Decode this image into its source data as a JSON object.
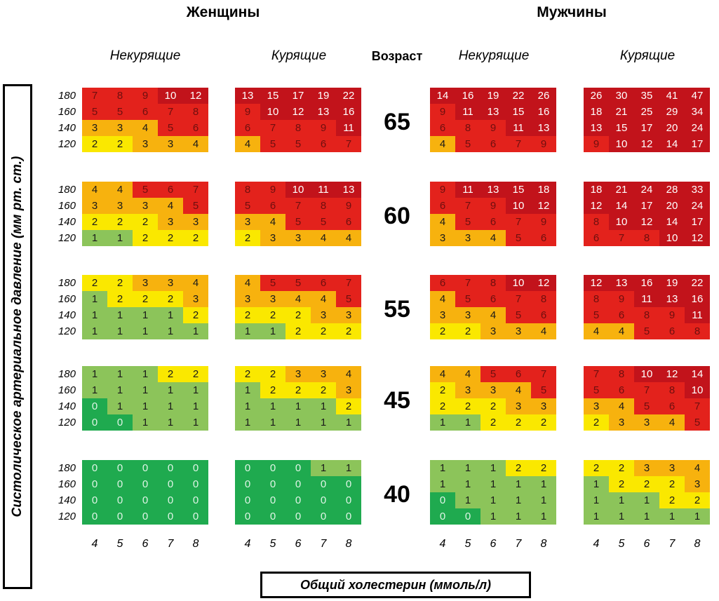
{
  "headers": {
    "women": "Женщины",
    "men": "Мужчины",
    "nonsmokers": "Некурящие",
    "smokers": "Курящие",
    "age": "Возраст"
  },
  "y_axis_label": "Систолическое артериальное давление (мм рт. ст.)",
  "x_axis_label": "Общий холестерин (ммоль/л)",
  "colors": {
    "dark_green": "#1faa4f",
    "light_green": "#8cc45a",
    "yellow": "#fae800",
    "orange": "#f7b20e",
    "red": "#e3221c",
    "dark_red": "#c2131b"
  },
  "chart_data": {
    "type": "heatmap",
    "title": "",
    "xlabel": "Общий холестерин (ммоль/л)",
    "ylabel": "Систолическое артериальное давление (мм рт. ст.)",
    "cholesterol": [
      "4",
      "5",
      "6",
      "7",
      "8"
    ],
    "blood_pressure": [
      "180",
      "160",
      "140",
      "120"
    ],
    "ages": [
      "65",
      "60",
      "55",
      "45",
      "40"
    ],
    "groups": [
      {
        "gender": "Женщины",
        "smoking": "Некурящие",
        "values": {
          "65": [
            [
              7,
              8,
              9,
              10,
              12
            ],
            [
              5,
              5,
              6,
              7,
              8
            ],
            [
              3,
              3,
              4,
              5,
              6
            ],
            [
              2,
              2,
              3,
              3,
              4
            ]
          ],
          "60": [
            [
              4,
              4,
              5,
              6,
              7
            ],
            [
              3,
              3,
              3,
              4,
              5
            ],
            [
              2,
              2,
              2,
              3,
              3
            ],
            [
              1,
              1,
              2,
              2,
              2
            ]
          ],
          "55": [
            [
              2,
              2,
              3,
              3,
              4
            ],
            [
              1,
              2,
              2,
              2,
              3
            ],
            [
              1,
              1,
              1,
              1,
              2
            ],
            [
              1,
              1,
              1,
              1,
              1
            ]
          ],
          "45": [
            [
              1,
              1,
              1,
              2,
              2
            ],
            [
              1,
              1,
              1,
              1,
              1
            ],
            [
              0,
              1,
              1,
              1,
              1
            ],
            [
              0,
              0,
              1,
              1,
              1
            ]
          ],
          "40": [
            [
              0,
              0,
              0,
              0,
              0
            ],
            [
              0,
              0,
              0,
              0,
              0
            ],
            [
              0,
              0,
              0,
              0,
              0
            ],
            [
              0,
              0,
              0,
              0,
              0
            ]
          ]
        }
      },
      {
        "gender": "Женщины",
        "smoking": "Курящие",
        "values": {
          "65": [
            [
              13,
              15,
              17,
              19,
              22
            ],
            [
              9,
              10,
              12,
              13,
              16
            ],
            [
              6,
              7,
              8,
              9,
              11
            ],
            [
              4,
              5,
              5,
              6,
              7
            ]
          ],
          "60": [
            [
              8,
              9,
              10,
              11,
              13
            ],
            [
              5,
              6,
              7,
              8,
              9
            ],
            [
              3,
              4,
              5,
              5,
              6
            ],
            [
              2,
              3,
              3,
              4,
              4
            ]
          ],
          "55": [
            [
              4,
              5,
              5,
              6,
              7
            ],
            [
              3,
              3,
              4,
              4,
              5
            ],
            [
              2,
              2,
              2,
              3,
              3
            ],
            [
              1,
              1,
              2,
              2,
              2
            ]
          ],
          "45": [
            [
              2,
              2,
              3,
              3,
              4
            ],
            [
              1,
              2,
              2,
              2,
              3
            ],
            [
              1,
              1,
              1,
              1,
              2
            ],
            [
              1,
              1,
              1,
              1,
              1
            ]
          ],
          "40": [
            [
              0,
              0,
              0,
              1,
              1
            ],
            [
              0,
              0,
              0,
              0,
              0
            ],
            [
              0,
              0,
              0,
              0,
              0
            ],
            [
              0,
              0,
              0,
              0,
              0
            ]
          ]
        }
      },
      {
        "gender": "Мужчины",
        "smoking": "Некурящие",
        "values": {
          "65": [
            [
              14,
              16,
              19,
              22,
              26
            ],
            [
              9,
              11,
              13,
              15,
              16
            ],
            [
              6,
              8,
              9,
              11,
              13
            ],
            [
              4,
              5,
              6,
              7,
              9
            ]
          ],
          "60": [
            [
              9,
              11,
              13,
              15,
              18
            ],
            [
              6,
              7,
              9,
              10,
              12
            ],
            [
              4,
              5,
              6,
              7,
              9
            ],
            [
              3,
              3,
              4,
              5,
              6
            ]
          ],
          "55": [
            [
              6,
              7,
              8,
              10,
              12
            ],
            [
              4,
              5,
              6,
              7,
              8
            ],
            [
              3,
              3,
              4,
              5,
              6
            ],
            [
              2,
              2,
              3,
              3,
              4
            ]
          ],
          "45": [
            [
              4,
              4,
              5,
              6,
              7
            ],
            [
              2,
              3,
              3,
              4,
              5
            ],
            [
              2,
              2,
              2,
              3,
              3
            ],
            [
              1,
              1,
              2,
              2,
              2
            ]
          ],
          "40": [
            [
              1,
              1,
              1,
              2,
              2
            ],
            [
              1,
              1,
              1,
              1,
              1
            ],
            [
              0,
              1,
              1,
              1,
              1
            ],
            [
              0,
              0,
              1,
              1,
              1
            ]
          ]
        }
      },
      {
        "gender": "Мужчины",
        "smoking": "Курящие",
        "values": {
          "65": [
            [
              26,
              30,
              35,
              41,
              47
            ],
            [
              18,
              21,
              25,
              29,
              34
            ],
            [
              13,
              15,
              17,
              20,
              24
            ],
            [
              9,
              10,
              12,
              14,
              17
            ]
          ],
          "60": [
            [
              18,
              21,
              24,
              28,
              33
            ],
            [
              12,
              14,
              17,
              20,
              24
            ],
            [
              8,
              10,
              12,
              14,
              17
            ],
            [
              6,
              7,
              8,
              10,
              12
            ]
          ],
          "55": [
            [
              12,
              13,
              16,
              19,
              22
            ],
            [
              8,
              9,
              11,
              13,
              16
            ],
            [
              5,
              6,
              8,
              9,
              11
            ],
            [
              4,
              4,
              5,
              6,
              8
            ]
          ],
          "45": [
            [
              7,
              8,
              10,
              12,
              14
            ],
            [
              5,
              6,
              7,
              8,
              10
            ],
            [
              3,
              4,
              5,
              6,
              7
            ],
            [
              2,
              3,
              3,
              4,
              5
            ]
          ],
          "40": [
            [
              2,
              2,
              3,
              3,
              4
            ],
            [
              1,
              2,
              2,
              2,
              3
            ],
            [
              1,
              1,
              1,
              2,
              2
            ],
            [
              1,
              1,
              1,
              1,
              1
            ]
          ]
        }
      }
    ]
  }
}
